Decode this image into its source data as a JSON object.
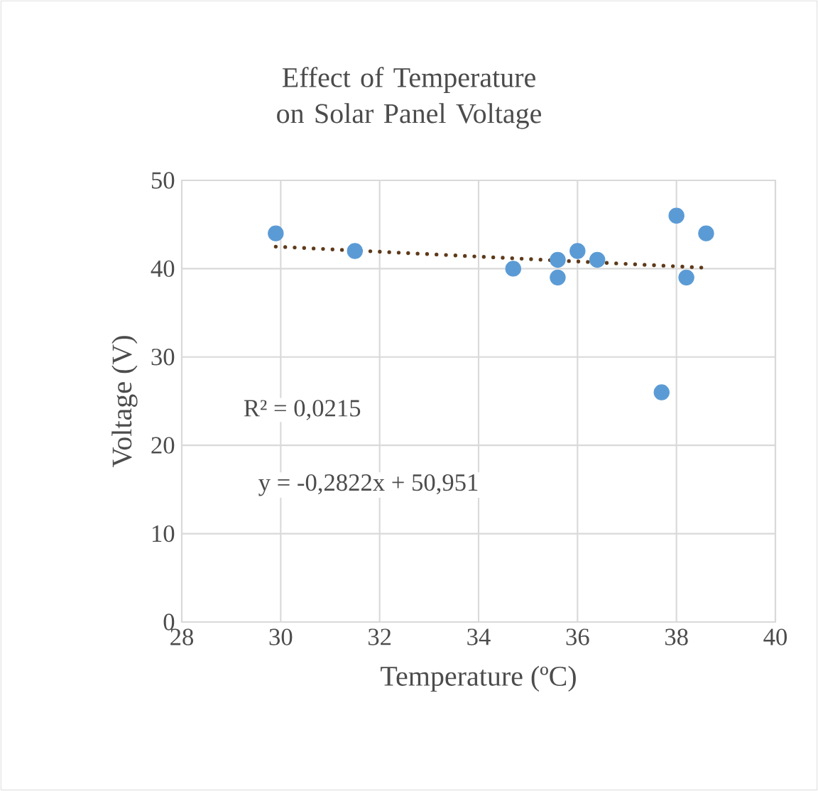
{
  "chart_data": {
    "type": "scatter",
    "title": "Effect of Temperature on Solar Panel Voltage",
    "xlabel": "Temperature (ºC)",
    "ylabel": "Voltage (V)",
    "xlim": [
      28,
      40
    ],
    "xticks": [
      28,
      30,
      32,
      34,
      36,
      38,
      40
    ],
    "ylim": [
      0,
      50
    ],
    "yticks": [
      0,
      10,
      20,
      30,
      40,
      50
    ],
    "grid": true,
    "marker": "circle",
    "series": [
      {
        "color": "#5b9bd5",
        "x": [
          29.9,
          31.5,
          34.7,
          35.6,
          35.6,
          36.0,
          36.4,
          37.7,
          38.0,
          38.2,
          38.6
        ],
        "values": [
          44,
          42,
          40,
          41,
          39,
          42,
          41,
          26,
          46,
          39,
          44
        ]
      },
      {
        "type": "line",
        "color": "#5e3a1a",
        "line_style": "dotted",
        "marker": "none",
        "x": [
          29.9,
          38.6
        ],
        "values": [
          42.5,
          40.1
        ]
      }
    ],
    "annotations": [
      "R² = 0,0215",
      "y = -0,2822x + 50,951"
    ]
  }
}
